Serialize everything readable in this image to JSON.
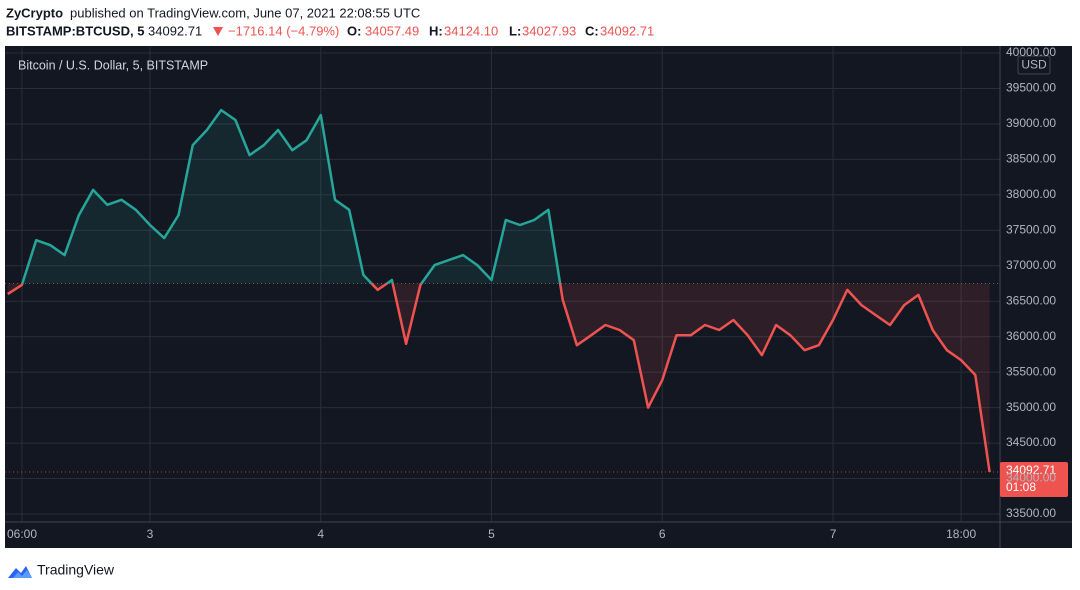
{
  "header": {
    "author": "ZyCrypto",
    "published": "published on TradingView.com, June 07, 2021 22:08:55 UTC",
    "symbol": "BITSTAMP:BTCUSD, 5",
    "last": "34092.71",
    "change": "−1716.14 (−4.79%)",
    "ohlc": [
      {
        "label": "O:",
        "value": "34057.49"
      },
      {
        "label": "H:",
        "value": "34124.10"
      },
      {
        "label": "L:",
        "value": "34027.93"
      },
      {
        "label": "C:",
        "value": "34092.71"
      }
    ]
  },
  "chart_data": {
    "type": "line",
    "categories": [
      null,
      "06:00",
      null,
      null,
      null,
      null,
      null,
      null,
      null,
      null,
      "3",
      null,
      null,
      null,
      null,
      null,
      null,
      null,
      null,
      null,
      null,
      null,
      "4",
      null,
      null,
      null,
      null,
      null,
      null,
      null,
      null,
      null,
      null,
      null,
      "5",
      null,
      null,
      null,
      null,
      null,
      null,
      null,
      null,
      null,
      null,
      null,
      "6",
      null,
      null,
      null,
      null,
      null,
      null,
      null,
      null,
      null,
      null,
      null,
      "7",
      null,
      null,
      null,
      null,
      null,
      null,
      null,
      null,
      "18:00",
      null,
      null
    ],
    "series": [
      {
        "name": "Bitcoin / U.S. Dollar, 5, BITSTAMP",
        "color": "#26a69a",
        "down_color": "#ef5350",
        "values": [
          36600,
          36730,
          37360,
          37290,
          37150,
          37715,
          38070,
          37860,
          37930,
          37790,
          37575,
          37390,
          37715,
          38700,
          38915,
          39195,
          39055,
          38560,
          38700,
          38915,
          38630,
          38770,
          39125,
          37930,
          37790,
          36870,
          36660,
          36800,
          35900,
          36730,
          37010,
          37080,
          37150,
          37010,
          36800,
          37645,
          37575,
          37645,
          37790,
          36520,
          35880,
          36020,
          36165,
          36095,
          35950,
          35000,
          35390,
          36020,
          36020,
          36165,
          36095,
          36235,
          36020,
          35740,
          36165,
          36020,
          35810,
          35880,
          36235,
          36660,
          36445,
          36305,
          36165,
          36445,
          36590,
          36095,
          35810,
          35670,
          35460,
          34092.71
        ]
      }
    ],
    "baseline": 36750,
    "currency": "USD",
    "countdown": "01:08",
    "ylim": [
      33387,
      40085
    ],
    "yticks": [
      {
        "value": 33500,
        "label": "33500.00"
      },
      {
        "value": 34000,
        "label": "34000.00"
      },
      {
        "value": 34500,
        "label": "34500.00"
      },
      {
        "value": 35000,
        "label": "35000.00"
      },
      {
        "value": 35500,
        "label": "35500.00"
      },
      {
        "value": 36000,
        "label": "36000.00"
      },
      {
        "value": 36500,
        "label": "36500.00"
      },
      {
        "value": 37000,
        "label": "37000.00"
      },
      {
        "value": 37500,
        "label": "37500.00"
      },
      {
        "value": 38000,
        "label": "38000.00"
      },
      {
        "value": 38500,
        "label": "38500.00"
      },
      {
        "value": 39000,
        "label": "39000.00"
      },
      {
        "value": 39500,
        "label": "39500.00"
      },
      {
        "value": 40000,
        "label": "40000.00"
      }
    ],
    "grid": true,
    "background": "#131722"
  },
  "footer": {
    "brand": "TradingView"
  }
}
